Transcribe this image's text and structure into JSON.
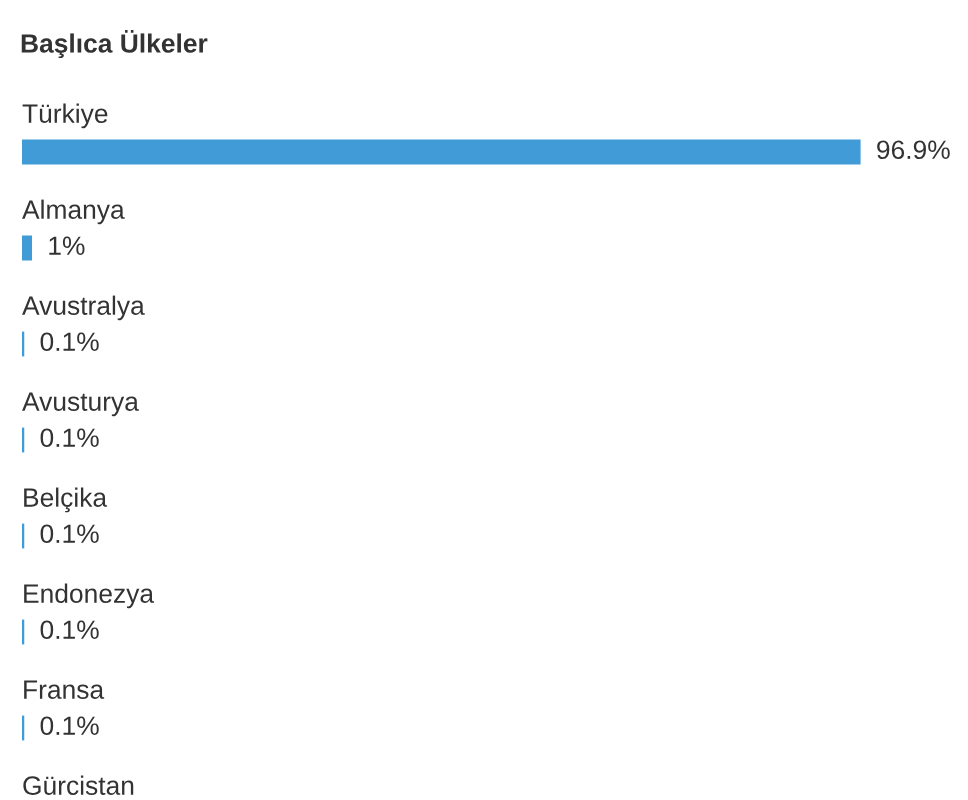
{
  "chart_data": {
    "type": "bar",
    "orientation": "horizontal",
    "title": "Başlıca Ülkeler",
    "categories": [
      "Türkiye",
      "Almanya",
      "Avustralya",
      "Avusturya",
      "Belçika",
      "Endonezya",
      "Fransa",
      "Gürcistan"
    ],
    "values": [
      96.9,
      1,
      0.1,
      0.1,
      0.1,
      0.1,
      0.1,
      null
    ],
    "value_labels": [
      "96.9%",
      "1%",
      "0.1%",
      "0.1%",
      "0.1%",
      "0.1%",
      "0.1%",
      null
    ],
    "color": "#419bd7",
    "tick_labels": "y"
  }
}
